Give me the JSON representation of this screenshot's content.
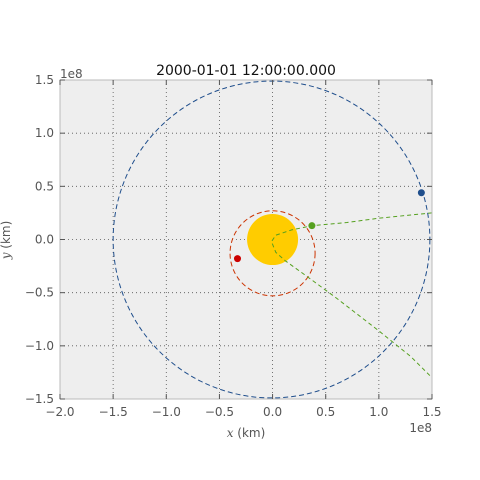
{
  "chart_data": {
    "type": "scatter",
    "title": "2000-01-01 12:00:00.000",
    "xlabel_var": "x",
    "xlabel_unit": " (km)",
    "ylabel_var": "y",
    "ylabel_unit": " (km)",
    "xlim": [
      -2.0,
      1.5
    ],
    "ylim": [
      -1.5,
      1.5
    ],
    "x_scale_label": "1e8",
    "y_scale_label": "1e8",
    "xticks": [
      -2.0,
      -1.5,
      -1.0,
      -0.5,
      0.0,
      0.5,
      1.0,
      1.5
    ],
    "xtick_labels": [
      "−2.0",
      "−1.5",
      "−1.0",
      "−0.5",
      "0.0",
      "0.5",
      "1.0",
      "1.5"
    ],
    "yticks": [
      -1.5,
      -1.0,
      -0.5,
      0.0,
      0.5,
      1.0,
      1.5
    ],
    "ytick_labels": [
      "−1.5",
      "−1.0",
      "−0.5",
      "0.0",
      "0.5",
      "1.0",
      "1.5"
    ],
    "grid": true,
    "background": "#eeeeee",
    "sun": {
      "x": 0.0,
      "y": 0.0,
      "radius": 0.24,
      "color": "#ffcc00"
    },
    "orbits": [
      {
        "center": [
          -0.01,
          0.0
        ],
        "radius": 1.49,
        "color": "#1f4e8c"
      },
      {
        "center": [
          0.0,
          -0.13
        ],
        "radius": 0.4,
        "color": "#cc3300"
      }
    ],
    "planets": [
      {
        "x": -0.33,
        "y": -0.18,
        "color": "#cc0000"
      },
      {
        "x": 1.4,
        "y": 0.44,
        "color": "#1f4e8c"
      },
      {
        "x": 0.37,
        "y": 0.13,
        "color": "#55a01f"
      }
    ],
    "trajectory": {
      "color": "#55a01f",
      "points": [
        [
          1.5,
          0.25
        ],
        [
          1.3,
          0.23
        ],
        [
          1.0,
          0.2
        ],
        [
          0.7,
          0.16
        ],
        [
          0.37,
          0.13
        ],
        [
          0.18,
          0.09
        ],
        [
          0.03,
          0.04
        ],
        [
          -0.01,
          -0.02
        ],
        [
          0.03,
          -0.12
        ],
        [
          0.12,
          -0.2
        ],
        [
          0.3,
          -0.33
        ],
        [
          0.6,
          -0.55
        ],
        [
          1.0,
          -0.86
        ],
        [
          1.3,
          -1.1
        ],
        [
          1.5,
          -1.3
        ]
      ]
    }
  }
}
